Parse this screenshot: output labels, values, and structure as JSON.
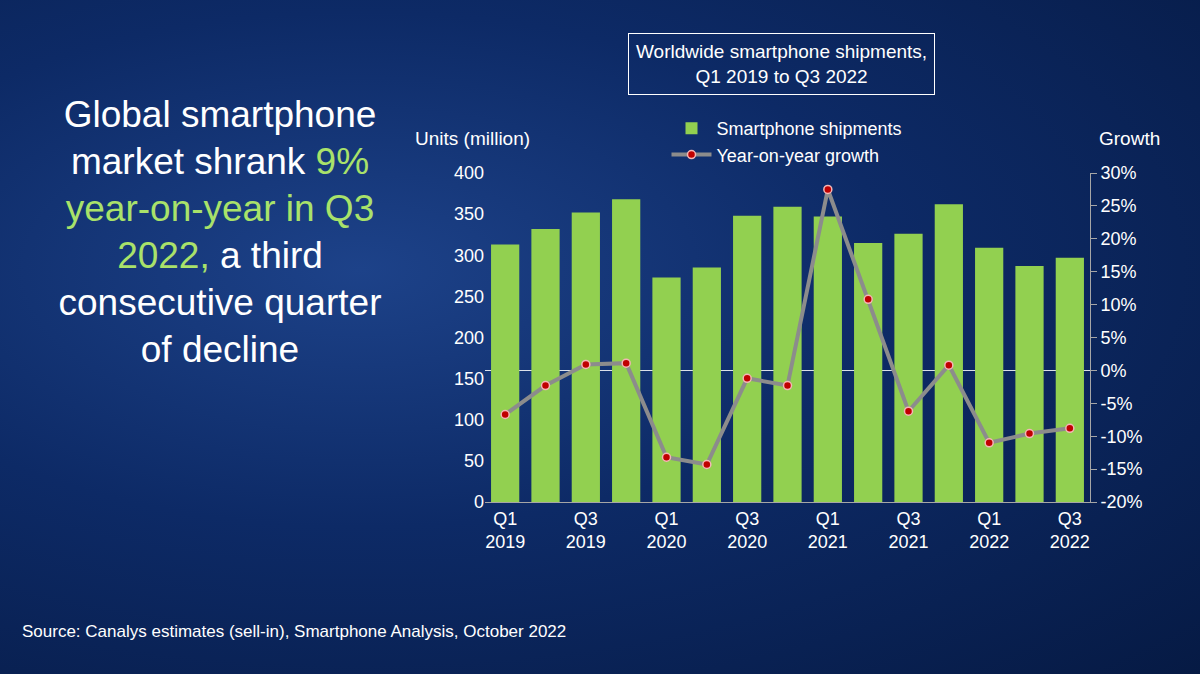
{
  "chart_data": {
    "type": "bar",
    "title": "Worldwide smartphone shipments, Q1 2019 to Q3 2022",
    "headline": [
      "Global smartphone market shrank",
      "9% year-on-year in Q3 2022,",
      "a third consecutive quarter of decline"
    ],
    "source": "Source:  Canalys estimates (sell-in), Smartphone Analysis, October 2022",
    "y_label": "Units (million)",
    "y2_label": "Growth",
    "categories": [
      "Q1 2019",
      null,
      "Q3 2019",
      null,
      "Q1 2020",
      null,
      "Q3 2020",
      null,
      "Q1 2021",
      null,
      "Q3 2021",
      null,
      "Q1 2022",
      null,
      "Q3 2022"
    ],
    "series": [
      {
        "name": "Smartphone shipments",
        "type": "bar",
        "color": "#92d050",
        "values": [
          313,
          332,
          352,
          368,
          273,
          285,
          348,
          359,
          347,
          315,
          326,
          362,
          309,
          287,
          297
        ]
      },
      {
        "name": "Year-on-year growth",
        "type": "line",
        "axis": "y2",
        "color": "#8c8c8c",
        "marker": "circle",
        "values": [
          -6.7,
          -2.3,
          0.9,
          1.1,
          -13.2,
          -14.3,
          -1.2,
          -2.3,
          27.5,
          10.8,
          -6.2,
          0.8,
          -11.0,
          -9.6,
          -8.8
        ]
      }
    ],
    "ylim": [
      0,
      400
    ],
    "yticks": [
      0,
      50,
      100,
      150,
      200,
      250,
      300,
      350,
      400
    ],
    "y2lim": [
      -20,
      30
    ],
    "y2ticks": [
      {
        "value": -20,
        "label": "-20%"
      },
      {
        "value": -15,
        "label": "-15%"
      },
      {
        "value": -10,
        "label": "-10%"
      },
      {
        "value": -5,
        "label": "-5%"
      },
      {
        "value": 0,
        "label": "0%"
      },
      {
        "value": 5,
        "label": "5%"
      },
      {
        "value": 10,
        "label": "10%"
      },
      {
        "value": 15,
        "label": "15%"
      },
      {
        "value": 20,
        "label": "20%"
      },
      {
        "value": 25,
        "label": "25%"
      },
      {
        "value": 30,
        "label": "30%"
      }
    ],
    "grid": false,
    "legend": "top"
  }
}
